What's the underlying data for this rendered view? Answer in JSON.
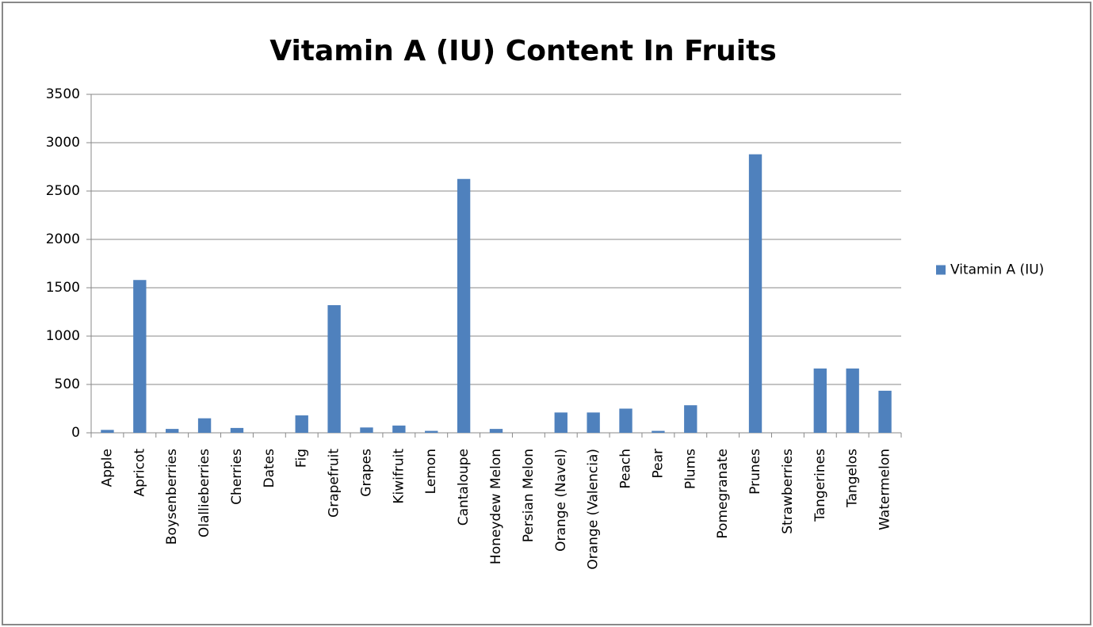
{
  "chart_data": {
    "type": "bar",
    "title": "Vitamin A (IU) Content In Fruits",
    "categories": [
      "Apple",
      "Apricot",
      "Boysenberries",
      "Olallieberries",
      "Cherries",
      "Dates",
      "Fig",
      "Grapefruit",
      "Grapes",
      "Kiwifruit",
      "Lemon",
      "Cantaloupe",
      "Honeydew Melon",
      "Persian Melon",
      "Orange (Navel)",
      "Orange (Valencia)",
      "Peach",
      "Pear",
      "Plums",
      "Pomegranate",
      "Prunes",
      "Strawberries",
      "Tangerines",
      "Tangelos",
      "Watermelon"
    ],
    "series": [
      {
        "name": "Vitamin A (IU)",
        "color": "#4f81bd",
        "values": [
          30,
          1580,
          40,
          150,
          50,
          0,
          180,
          1320,
          55,
          75,
          20,
          2625,
          40,
          0,
          210,
          210,
          250,
          20,
          285,
          0,
          2880,
          0,
          665,
          665,
          435
        ]
      }
    ],
    "ylim": [
      0,
      3500
    ],
    "yticks": [
      0,
      500,
      1000,
      1500,
      2000,
      2500,
      3000,
      3500
    ],
    "grid": true,
    "legend": "right"
  }
}
